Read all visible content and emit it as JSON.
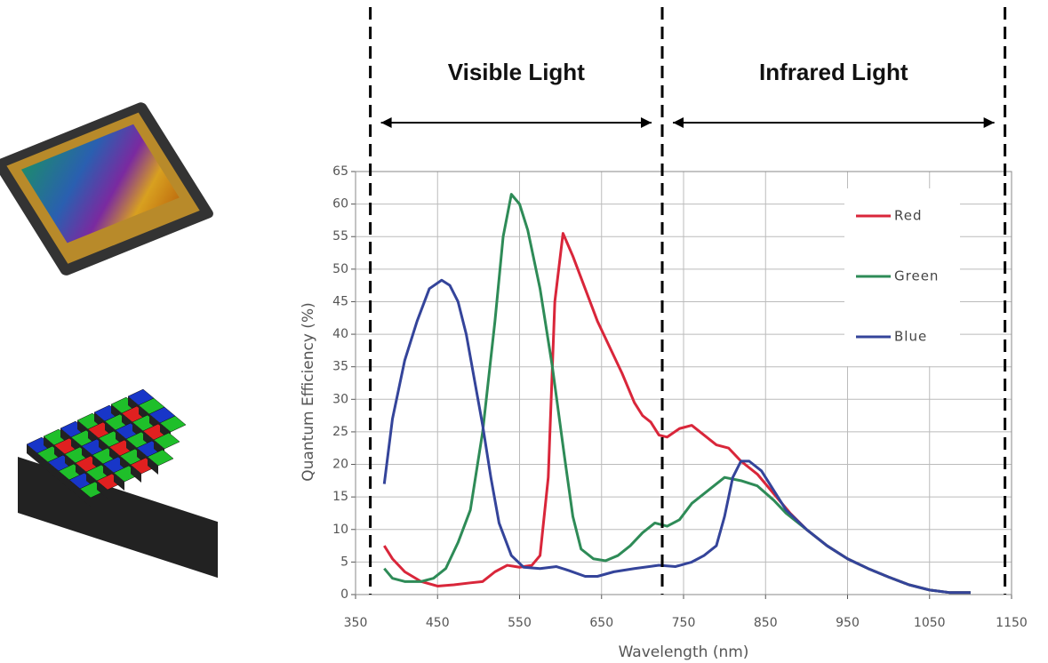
{
  "chart_data": {
    "type": "line",
    "xlabel": "Wavelength (nm)",
    "ylabel": "Quantum Efficiency (%)",
    "xlim": [
      350,
      1150
    ],
    "xticks": [
      350,
      450,
      550,
      650,
      750,
      850,
      950,
      1050,
      1150
    ],
    "ylim": [
      0,
      65
    ],
    "yticks": [
      0,
      5,
      10,
      15,
      20,
      25,
      30,
      35,
      40,
      45,
      50,
      55,
      60,
      65
    ],
    "grid": true,
    "legend": "upper right",
    "regions": [
      {
        "label": "Visible Light",
        "start": 368,
        "end": 724
      },
      {
        "label": "Infrared Light",
        "start": 724,
        "end": 1142
      }
    ],
    "series": [
      {
        "name": "Red",
        "color": "#d9263a",
        "x": [
          385,
          395,
          410,
          430,
          450,
          470,
          490,
          505,
          520,
          535,
          550,
          565,
          575,
          585,
          593,
          603,
          615,
          630,
          645,
          660,
          675,
          690,
          700,
          710,
          720,
          730,
          745,
          760,
          775,
          790,
          805,
          820,
          840,
          860,
          880,
          900,
          925,
          950,
          975,
          1000,
          1025,
          1050,
          1075,
          1100
        ],
        "values": [
          7.5,
          5.5,
          3.5,
          2,
          1.3,
          1.5,
          1.8,
          2,
          3.5,
          4.5,
          4.2,
          4.5,
          6,
          18,
          45,
          55.5,
          52,
          47,
          42,
          38,
          34,
          29.5,
          27.5,
          26.5,
          24.5,
          24.2,
          25.5,
          26,
          24.5,
          23,
          22.5,
          20.5,
          18.5,
          15.5,
          12.5,
          10,
          7.5,
          5.5,
          4,
          2.7,
          1.5,
          0.7,
          0.3,
          0.3
        ]
      },
      {
        "name": "Green",
        "color": "#2e8b57",
        "x": [
          385,
          395,
          410,
          430,
          445,
          460,
          475,
          490,
          505,
          520,
          530,
          540,
          550,
          560,
          575,
          590,
          605,
          615,
          625,
          640,
          655,
          670,
          685,
          700,
          715,
          730,
          745,
          760,
          780,
          800,
          820,
          840,
          860,
          875,
          900,
          925,
          950,
          975,
          1000,
          1025,
          1050,
          1075,
          1100
        ],
        "values": [
          4,
          2.5,
          2,
          2,
          2.5,
          4,
          8,
          13,
          25,
          42,
          55,
          61.5,
          60,
          56,
          47,
          35,
          21,
          12,
          7,
          5.5,
          5.2,
          6,
          7.5,
          9.5,
          11,
          10.5,
          11.5,
          14,
          16,
          18,
          17.5,
          16.7,
          14.5,
          12.5,
          10,
          7.5,
          5.5,
          4,
          2.7,
          1.5,
          0.7,
          0.3,
          0.3
        ]
      },
      {
        "name": "Blue",
        "color": "#34449a",
        "x": [
          385,
          395,
          410,
          425,
          440,
          455,
          465,
          475,
          485,
          495,
          505,
          515,
          525,
          540,
          555,
          575,
          595,
          610,
          630,
          645,
          665,
          690,
          720,
          740,
          760,
          775,
          790,
          800,
          810,
          820,
          830,
          845,
          860,
          875,
          900,
          925,
          950,
          975,
          1000,
          1025,
          1050,
          1075,
          1100
        ],
        "values": [
          17,
          27,
          36,
          42,
          47,
          48.3,
          47.5,
          45,
          40,
          33,
          26,
          18,
          11,
          6,
          4.2,
          4,
          4.3,
          3.7,
          2.8,
          2.8,
          3.5,
          4,
          4.5,
          4.3,
          5,
          6,
          7.5,
          12,
          18,
          20.5,
          20.5,
          19,
          16,
          13,
          10,
          7.5,
          5.5,
          4,
          2.7,
          1.5,
          0.7,
          0.3,
          0.3
        ]
      }
    ]
  }
}
